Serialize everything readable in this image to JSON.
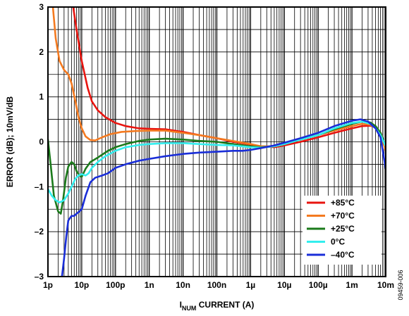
{
  "chart_data": {
    "type": "line",
    "xlabel": {
      "main": "I",
      "sub": "NUM",
      "rest": " CURRENT (A)"
    },
    "ylabel": "ERROR (dB); 10mV/dB",
    "x_scale": "log",
    "xlim": [
      1e-12,
      0.01
    ],
    "ylim": [
      -3,
      3
    ],
    "grid": true,
    "legend_placement": "bottom-right",
    "x_ticks": [
      {
        "value": 1e-12,
        "label": "1p"
      },
      {
        "value": 1e-11,
        "label": "10p"
      },
      {
        "value": 1e-10,
        "label": "100p"
      },
      {
        "value": 1e-09,
        "label": "1n"
      },
      {
        "value": 1e-08,
        "label": "10n"
      },
      {
        "value": 1e-07,
        "label": "100n"
      },
      {
        "value": 1e-06,
        "label": "1µ"
      },
      {
        "value": 1e-05,
        "label": "10µ"
      },
      {
        "value": 0.0001,
        "label": "100µ"
      },
      {
        "value": 0.001,
        "label": "1m"
      },
      {
        "value": 0.01,
        "label": "10m"
      }
    ],
    "y_ticks": [
      {
        "value": 3,
        "label": "3"
      },
      {
        "value": 2,
        "label": "2"
      },
      {
        "value": 1,
        "label": "1"
      },
      {
        "value": 0,
        "label": "0"
      },
      {
        "value": -1,
        "label": "–1"
      },
      {
        "value": -2,
        "label": "–2"
      },
      {
        "value": -3,
        "label": "–3"
      }
    ],
    "series": [
      {
        "name": "+85°C",
        "color": "#e8140f",
        "points": [
          [
            5.6e-12,
            3.0
          ],
          [
            7e-12,
            2.5
          ],
          [
            1e-11,
            1.8
          ],
          [
            1.5e-11,
            1.2
          ],
          [
            2e-11,
            0.9
          ],
          [
            3e-11,
            0.7
          ],
          [
            5e-11,
            0.55
          ],
          [
            1e-10,
            0.42
          ],
          [
            2e-10,
            0.35
          ],
          [
            5e-10,
            0.3
          ],
          [
            1e-09,
            0.29
          ],
          [
            3e-09,
            0.28
          ],
          [
            1e-08,
            0.22
          ],
          [
            3e-08,
            0.15
          ],
          [
            1e-07,
            0.08
          ],
          [
            3e-07,
            0.0
          ],
          [
            1e-06,
            -0.06
          ],
          [
            2e-06,
            -0.1
          ],
          [
            5e-06,
            -0.12
          ],
          [
            1e-05,
            -0.08
          ],
          [
            3e-05,
            0.0
          ],
          [
            0.0001,
            0.1
          ],
          [
            0.0003,
            0.2
          ],
          [
            0.001,
            0.3
          ],
          [
            0.002,
            0.35
          ],
          [
            0.0035,
            0.36
          ],
          [
            0.005,
            0.32
          ],
          [
            0.007,
            0.2
          ],
          [
            0.01,
            -0.15
          ]
        ]
      },
      {
        "name": "+70°C",
        "color": "#f47a20",
        "points": [
          [
            1.4e-12,
            3.0
          ],
          [
            1.7e-12,
            2.3
          ],
          [
            2.2e-12,
            1.8
          ],
          [
            3e-12,
            1.6
          ],
          [
            4e-12,
            1.5
          ],
          [
            5e-12,
            1.3
          ],
          [
            6.5e-12,
            0.9
          ],
          [
            8e-12,
            0.55
          ],
          [
            1e-11,
            0.3
          ],
          [
            1.3e-11,
            0.12
          ],
          [
            1.8e-11,
            0.04
          ],
          [
            2.5e-11,
            0.03
          ],
          [
            4e-11,
            0.1
          ],
          [
            7e-11,
            0.17
          ],
          [
            1.5e-10,
            0.22
          ],
          [
            4e-10,
            0.24
          ],
          [
            1e-09,
            0.25
          ],
          [
            3e-09,
            0.25
          ],
          [
            1e-08,
            0.2
          ],
          [
            3e-08,
            0.15
          ],
          [
            1e-07,
            0.08
          ],
          [
            3e-07,
            0.02
          ],
          [
            1e-06,
            -0.05
          ],
          [
            2e-06,
            -0.1
          ],
          [
            5e-06,
            -0.1
          ],
          [
            1e-05,
            -0.05
          ],
          [
            3e-05,
            0.05
          ],
          [
            0.0001,
            0.15
          ],
          [
            0.0003,
            0.25
          ],
          [
            0.001,
            0.35
          ],
          [
            0.002,
            0.4
          ],
          [
            0.0035,
            0.38
          ],
          [
            0.005,
            0.32
          ],
          [
            0.007,
            0.18
          ],
          [
            0.01,
            -0.2
          ]
        ]
      },
      {
        "name": "+25°C",
        "color": "#1b7a1b",
        "points": [
          [
            1e-12,
            0.05
          ],
          [
            1.2e-12,
            -0.5
          ],
          [
            1.5e-12,
            -1.2
          ],
          [
            2e-12,
            -1.55
          ],
          [
            2.4e-12,
            -1.6
          ],
          [
            2.8e-12,
            -1.3
          ],
          [
            3.4e-12,
            -0.8
          ],
          [
            4e-12,
            -0.55
          ],
          [
            5e-12,
            -0.45
          ],
          [
            6e-12,
            -0.5
          ],
          [
            7e-12,
            -0.65
          ],
          [
            8.5e-12,
            -0.75
          ],
          [
            1e-11,
            -0.78
          ],
          [
            1.3e-11,
            -0.6
          ],
          [
            1.8e-11,
            -0.45
          ],
          [
            3e-11,
            -0.35
          ],
          [
            6e-11,
            -0.2
          ],
          [
            1e-10,
            -0.12
          ],
          [
            2e-10,
            -0.05
          ],
          [
            5e-10,
            0.02
          ],
          [
            1e-09,
            0.05
          ],
          [
            3e-09,
            0.07
          ],
          [
            1e-08,
            0.05
          ],
          [
            3e-08,
            0.02
          ],
          [
            1e-07,
            0.0
          ],
          [
            3e-07,
            -0.05
          ],
          [
            1e-06,
            -0.1
          ],
          [
            2e-06,
            -0.12
          ],
          [
            5e-06,
            -0.1
          ],
          [
            1e-05,
            -0.05
          ],
          [
            3e-05,
            0.05
          ],
          [
            0.0001,
            0.15
          ],
          [
            0.0003,
            0.28
          ],
          [
            0.001,
            0.4
          ],
          [
            0.002,
            0.45
          ],
          [
            0.0035,
            0.43
          ],
          [
            0.005,
            0.35
          ],
          [
            0.007,
            0.2
          ],
          [
            0.01,
            -0.1
          ]
        ]
      },
      {
        "name": "0°C",
        "color": "#33eeee",
        "points": [
          [
            1e-12,
            -1.05
          ],
          [
            1.3e-12,
            -1.2
          ],
          [
            1.7e-12,
            -1.3
          ],
          [
            2.2e-12,
            -1.35
          ],
          [
            3e-12,
            -1.3
          ],
          [
            4e-12,
            -1.15
          ],
          [
            5e-12,
            -1.0
          ],
          [
            6.5e-12,
            -0.82
          ],
          [
            8e-12,
            -0.75
          ],
          [
            1e-11,
            -0.72
          ],
          [
            1.3e-11,
            -0.75
          ],
          [
            1.6e-11,
            -0.7
          ],
          [
            2e-11,
            -0.58
          ],
          [
            3e-11,
            -0.45
          ],
          [
            5e-11,
            -0.32
          ],
          [
            1e-10,
            -0.2
          ],
          [
            2e-10,
            -0.12
          ],
          [
            5e-10,
            -0.07
          ],
          [
            1e-09,
            -0.05
          ],
          [
            3e-09,
            -0.03
          ],
          [
            1e-08,
            -0.03
          ],
          [
            3e-08,
            -0.05
          ],
          [
            1e-07,
            -0.07
          ],
          [
            3e-07,
            -0.08
          ],
          [
            1e-06,
            -0.12
          ],
          [
            2e-06,
            -0.13
          ],
          [
            5e-06,
            -0.1
          ],
          [
            1e-05,
            -0.05
          ],
          [
            3e-05,
            0.05
          ],
          [
            0.0001,
            0.15
          ],
          [
            0.0003,
            0.3
          ],
          [
            0.001,
            0.42
          ],
          [
            0.002,
            0.45
          ],
          [
            0.0035,
            0.4
          ],
          [
            0.005,
            0.3
          ],
          [
            0.007,
            0.15
          ],
          [
            0.01,
            -0.1
          ]
        ]
      },
      {
        "name": "–40°C",
        "color": "#1a2ed8",
        "points": [
          [
            2.6e-12,
            -3.0
          ],
          [
            3e-12,
            -2.6
          ],
          [
            3.5e-12,
            -2.1
          ],
          [
            4e-12,
            -1.75
          ],
          [
            5e-12,
            -1.65
          ],
          [
            6e-12,
            -1.65
          ],
          [
            7e-12,
            -1.6
          ],
          [
            8.5e-12,
            -1.55
          ],
          [
            1e-11,
            -1.5
          ],
          [
            1.3e-11,
            -1.2
          ],
          [
            1.8e-11,
            -0.9
          ],
          [
            2.5e-11,
            -0.8
          ],
          [
            4e-11,
            -0.75
          ],
          [
            6e-11,
            -0.7
          ],
          [
            1e-10,
            -0.58
          ],
          [
            2e-10,
            -0.5
          ],
          [
            5e-10,
            -0.42
          ],
          [
            1e-09,
            -0.38
          ],
          [
            3e-09,
            -0.32
          ],
          [
            1e-08,
            -0.27
          ],
          [
            3e-08,
            -0.24
          ],
          [
            1e-07,
            -0.22
          ],
          [
            3e-07,
            -0.2
          ],
          [
            6e-07,
            -0.2
          ],
          [
            1e-06,
            -0.18
          ],
          [
            2e-06,
            -0.14
          ],
          [
            5e-06,
            -0.08
          ],
          [
            1e-05,
            -0.02
          ],
          [
            3e-05,
            0.08
          ],
          [
            0.0001,
            0.2
          ],
          [
            0.0003,
            0.35
          ],
          [
            0.001,
            0.47
          ],
          [
            0.0018,
            0.5
          ],
          [
            0.003,
            0.45
          ],
          [
            0.005,
            0.3
          ],
          [
            0.007,
            0.1
          ],
          [
            0.01,
            -0.6
          ]
        ]
      }
    ]
  },
  "figure_id": "09459-006"
}
